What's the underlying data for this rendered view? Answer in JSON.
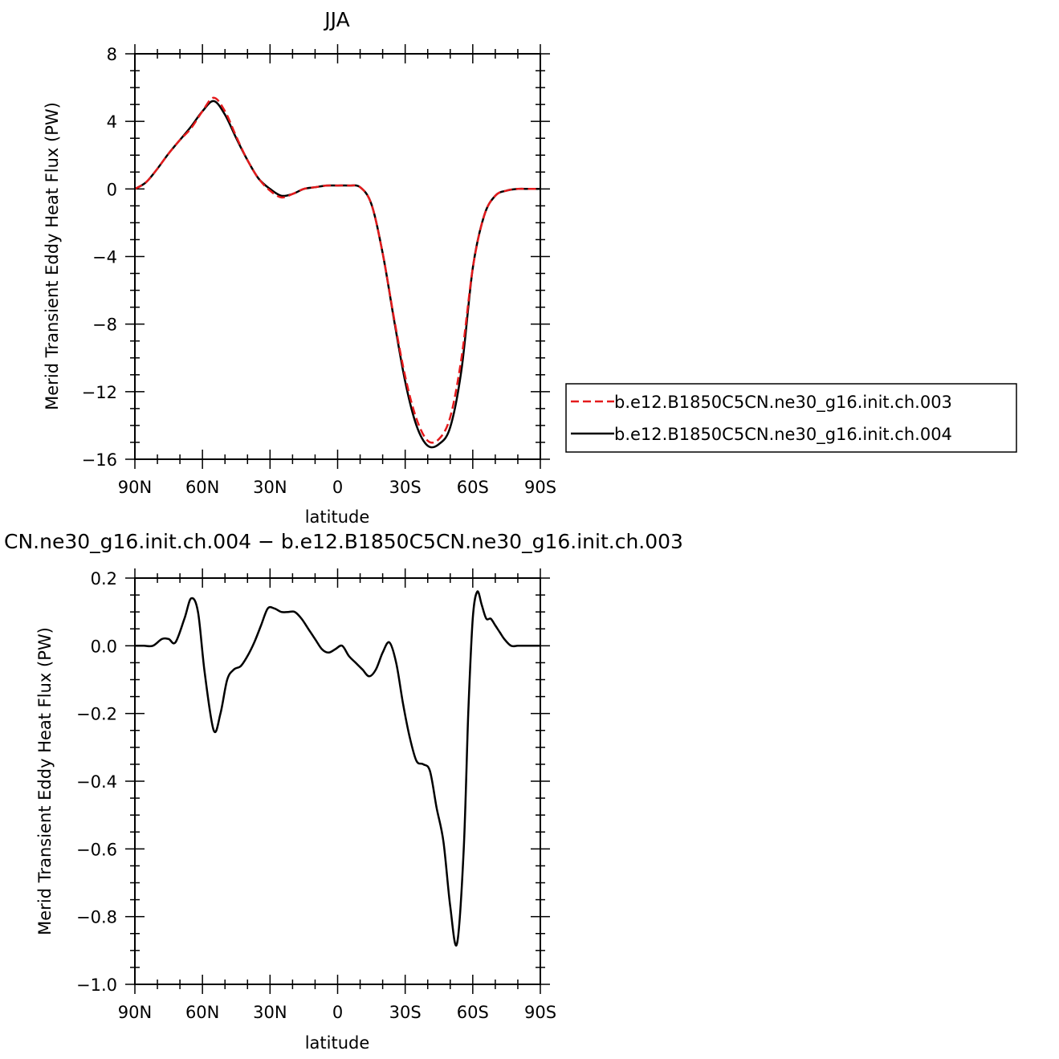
{
  "chart_data": [
    {
      "type": "line",
      "title": "JJA",
      "xlabel": "latitude",
      "ylabel": "Merid Transient Eddy Heat Flux (PW)",
      "x_tick_labels": [
        "90N",
        "60N",
        "30N",
        "0",
        "30S",
        "60S",
        "90S"
      ],
      "y_tick_labels": [
        "8",
        "4",
        "0",
        "−4",
        "−8",
        "−12",
        "−16"
      ],
      "xlim": [
        90,
        -90
      ],
      "ylim": [
        -16,
        8
      ],
      "grid": false,
      "legend_position": "right",
      "x": [
        90,
        85,
        80,
        75,
        70,
        65,
        60,
        55,
        50,
        45,
        40,
        35,
        30,
        25,
        20,
        15,
        10,
        5,
        0,
        -5,
        -10,
        -15,
        -20,
        -25,
        -30,
        -35,
        -40,
        -45,
        -50,
        -55,
        -60,
        -65,
        -70,
        -75,
        -80,
        -85,
        -90
      ],
      "series": [
        {
          "name": "b.e12.B1850C5CN.ne30_g16.init.ch.003",
          "color": "#e41a1c",
          "dash": "dashed",
          "values": [
            0.0,
            0.4,
            1.2,
            2.1,
            2.9,
            3.6,
            4.6,
            5.4,
            4.6,
            3.1,
            1.7,
            0.6,
            -0.1,
            -0.5,
            -0.3,
            0.0,
            0.1,
            0.2,
            0.2,
            0.2,
            0.1,
            -0.9,
            -3.8,
            -7.6,
            -11.1,
            -13.6,
            -14.9,
            -14.8,
            -13.5,
            -10.0,
            -4.7,
            -1.6,
            -0.4,
            -0.1,
            0.0,
            0.0,
            0.0
          ]
        },
        {
          "name": "b.e12.B1850C5CN.ne30_g16.init.ch.004",
          "color": "#000000",
          "dash": "solid",
          "values": [
            0.0,
            0.4,
            1.2,
            2.1,
            2.9,
            3.7,
            4.6,
            5.2,
            4.4,
            3.0,
            1.7,
            0.6,
            0.0,
            -0.4,
            -0.3,
            0.0,
            0.1,
            0.2,
            0.2,
            0.2,
            0.1,
            -0.9,
            -3.8,
            -7.7,
            -11.4,
            -14.0,
            -15.2,
            -15.1,
            -14.1,
            -10.7,
            -4.7,
            -1.6,
            -0.4,
            -0.1,
            0.0,
            0.0,
            0.0
          ]
        }
      ]
    },
    {
      "type": "line",
      "title": "CN.ne30_g16.init.ch.004 − b.e12.B1850C5CN.ne30_g16.init.ch.003",
      "xlabel": "latitude",
      "ylabel": "Merid Transient Eddy Heat Flux (PW)",
      "x_tick_labels": [
        "90N",
        "60N",
        "30N",
        "0",
        "30S",
        "60S",
        "90S"
      ],
      "y_tick_labels": [
        "0.2",
        "0.0",
        "−0.2",
        "−0.4",
        "−0.6",
        "−0.8",
        "−1.0"
      ],
      "xlim": [
        90,
        -90
      ],
      "ylim": [
        -1.0,
        0.2
      ],
      "grid": false,
      "x": [
        90,
        86,
        82,
        78,
        75,
        72,
        68,
        65,
        62,
        59,
        55,
        52,
        49,
        46,
        43,
        40,
        37,
        34,
        31,
        28,
        25,
        22,
        19,
        16,
        13,
        10,
        7,
        4,
        1,
        -2,
        -5,
        -8,
        -11,
        -14,
        -17,
        -20,
        -23,
        -26,
        -29,
        -32,
        -35,
        -38,
        -41,
        -44,
        -47,
        -50,
        -53,
        -56,
        -58,
        -60,
        -62,
        -64,
        -66,
        -68,
        -70,
        -72,
        -74,
        -77,
        -80,
        -83,
        -86,
        -90
      ],
      "series": [
        {
          "name": "",
          "color": "#000000",
          "dash": "solid",
          "values": [
            0.0,
            0.0,
            0.0,
            0.02,
            0.02,
            0.01,
            0.08,
            0.14,
            0.1,
            -0.08,
            -0.25,
            -0.2,
            -0.1,
            -0.07,
            -0.06,
            -0.03,
            0.01,
            0.06,
            0.11,
            0.11,
            0.1,
            0.1,
            0.1,
            0.08,
            0.05,
            0.02,
            -0.01,
            -0.02,
            -0.01,
            0.0,
            -0.03,
            -0.05,
            -0.07,
            -0.09,
            -0.07,
            -0.02,
            0.01,
            -0.05,
            -0.17,
            -0.27,
            -0.34,
            -0.35,
            -0.37,
            -0.48,
            -0.58,
            -0.77,
            -0.88,
            -0.6,
            -0.2,
            0.08,
            0.16,
            0.12,
            0.08,
            0.08,
            0.06,
            0.04,
            0.02,
            0.0,
            0.0,
            0.0,
            0.0,
            0.0
          ]
        }
      ]
    }
  ]
}
